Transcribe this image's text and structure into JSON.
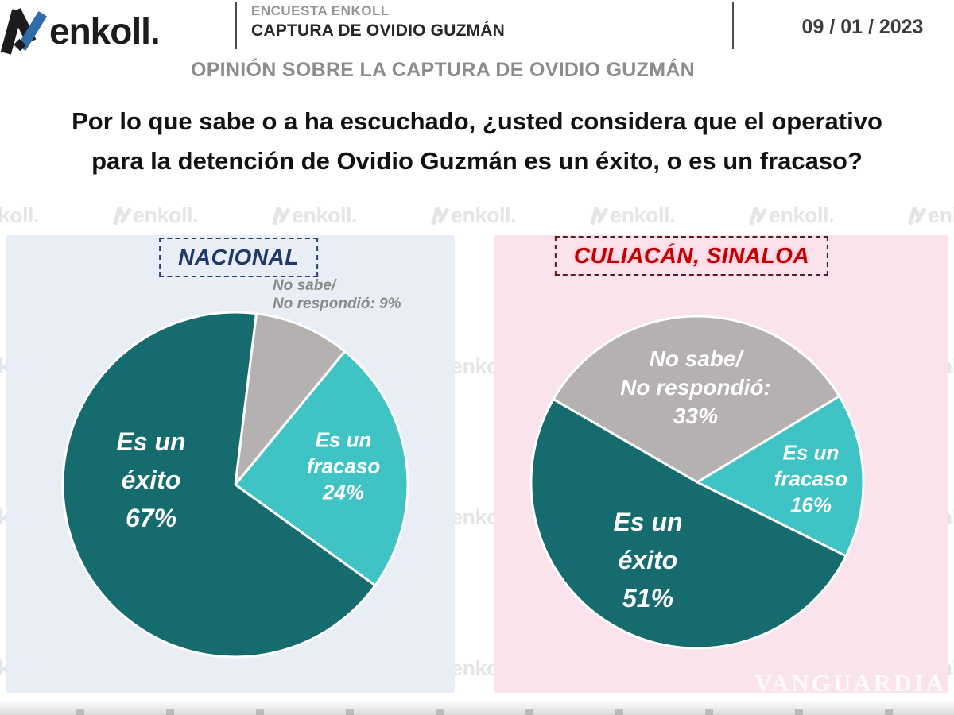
{
  "header": {
    "logo_text": "enkoll.",
    "survey_label": "ENCUESTA ENKOLL",
    "survey_title": "CAPTURA DE OVIDIO GUZMÁN",
    "date": "09 / 01 / 2023",
    "subtitle": "OPINIÓN SOBRE LA CAPTURA DE OVIDIO GUZMÁN"
  },
  "question": {
    "line1": "Por lo que sabe o a ha escuchado, ¿usted considera que el operativo",
    "line2": "para la detención de Ovidio Guzmán es un éxito, o es un fracaso?"
  },
  "watermark": {
    "text": "enkoll.",
    "photo_credit": "VANGUARDIA"
  },
  "colors": {
    "exito": "#156b6e",
    "fracaso": "#3fc3c5",
    "no_sabe": "#b4b1b0",
    "panel_nacional": "#e9edf6",
    "panel_culiacan": "#fbe3ed",
    "nacional_label": "#1f3a68",
    "culiacan_label": "#c00000"
  },
  "chart_data": [
    {
      "type": "pie",
      "title": "NACIONAL",
      "legend_position": "labels-on-slices",
      "start_angle_deg_clockwise_from_top": 7,
      "slices": [
        {
          "name": "no-sabe",
          "label": "No sabe/ No respondió",
          "value": 9,
          "color": "#b4b1b0",
          "label_placement": "outside",
          "label_lines": [
            "No sabe/",
            "No respondió: 9%"
          ]
        },
        {
          "name": "fracaso",
          "label": "Es un fracaso",
          "value": 24,
          "color": "#3fc3c5",
          "label_placement": "inside",
          "label_lines": [
            "Es un",
            "fracaso",
            "24%"
          ]
        },
        {
          "name": "exito",
          "label": "Es un éxito",
          "value": 67,
          "color": "#156b6e",
          "label_placement": "inside",
          "label_lines": [
            "Es un",
            "éxito",
            "67%"
          ]
        }
      ]
    },
    {
      "type": "pie",
      "title": "CULIACÁN, SINALOA",
      "legend_position": "labels-on-slices",
      "start_angle_deg_clockwise_from_top": 300,
      "slices": [
        {
          "name": "no-sabe",
          "label": "No sabe/ No respondió",
          "value": 33,
          "color": "#b4b1b0",
          "label_placement": "inside",
          "label_lines": [
            "No sabe/",
            "No respondió:",
            "33%"
          ]
        },
        {
          "name": "fracaso",
          "label": "Es un fracaso",
          "value": 16,
          "color": "#3fc3c5",
          "label_placement": "inside",
          "label_lines": [
            "Es un",
            "fracaso",
            "16%"
          ]
        },
        {
          "name": "exito",
          "label": "Es un éxito",
          "value": 51,
          "color": "#156b6e",
          "label_placement": "inside",
          "label_lines": [
            "Es un",
            "éxito",
            "51%"
          ]
        }
      ]
    }
  ]
}
